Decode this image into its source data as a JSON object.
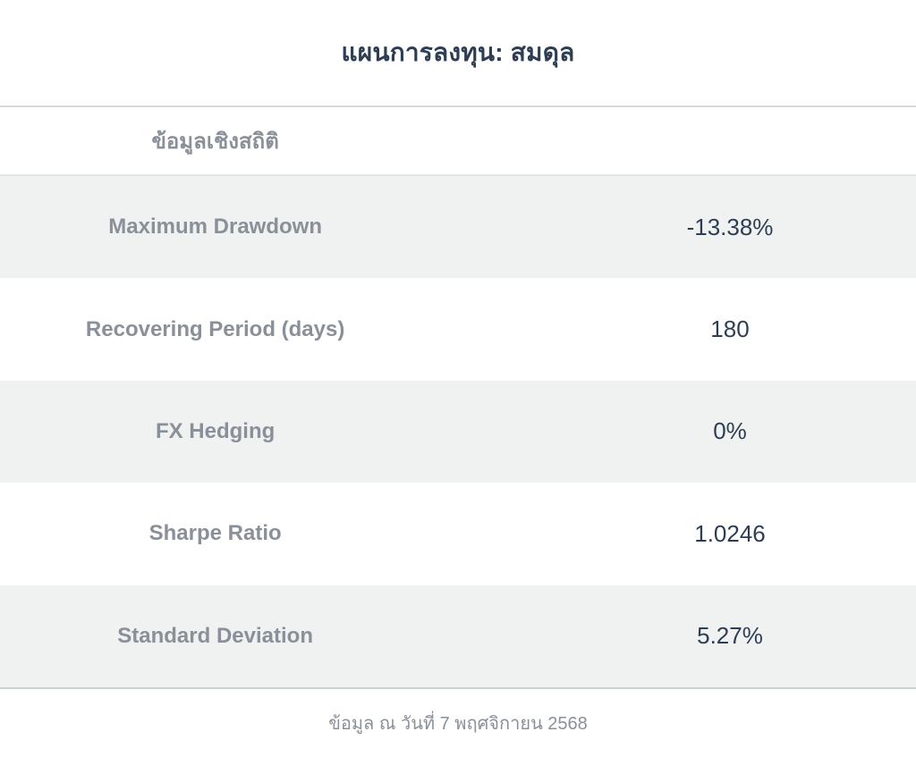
{
  "page": {
    "title": "แผนการลงทุน: สมดุล",
    "footer": "ข้อมูล ณ วันที่ 7 พฤศจิกายน 2568"
  },
  "table": {
    "section_header": "ข้อมูลเชิงสถิติ",
    "rows": [
      {
        "label": "Maximum Drawdown",
        "value": "-13.38%"
      },
      {
        "label": "Recovering Period (days)",
        "value": "180"
      },
      {
        "label": "FX Hedging",
        "value": "0%"
      },
      {
        "label": "Sharpe Ratio",
        "value": "1.0246"
      },
      {
        "label": "Standard Deviation",
        "value": "5.27%"
      }
    ]
  },
  "colors": {
    "value_navy": "#2d3e54",
    "label_gray": "#8a9099",
    "row_stripe": "#f0f1f1",
    "outer_border": "#ccd1d4",
    "header_border": "#e0e4e5"
  }
}
